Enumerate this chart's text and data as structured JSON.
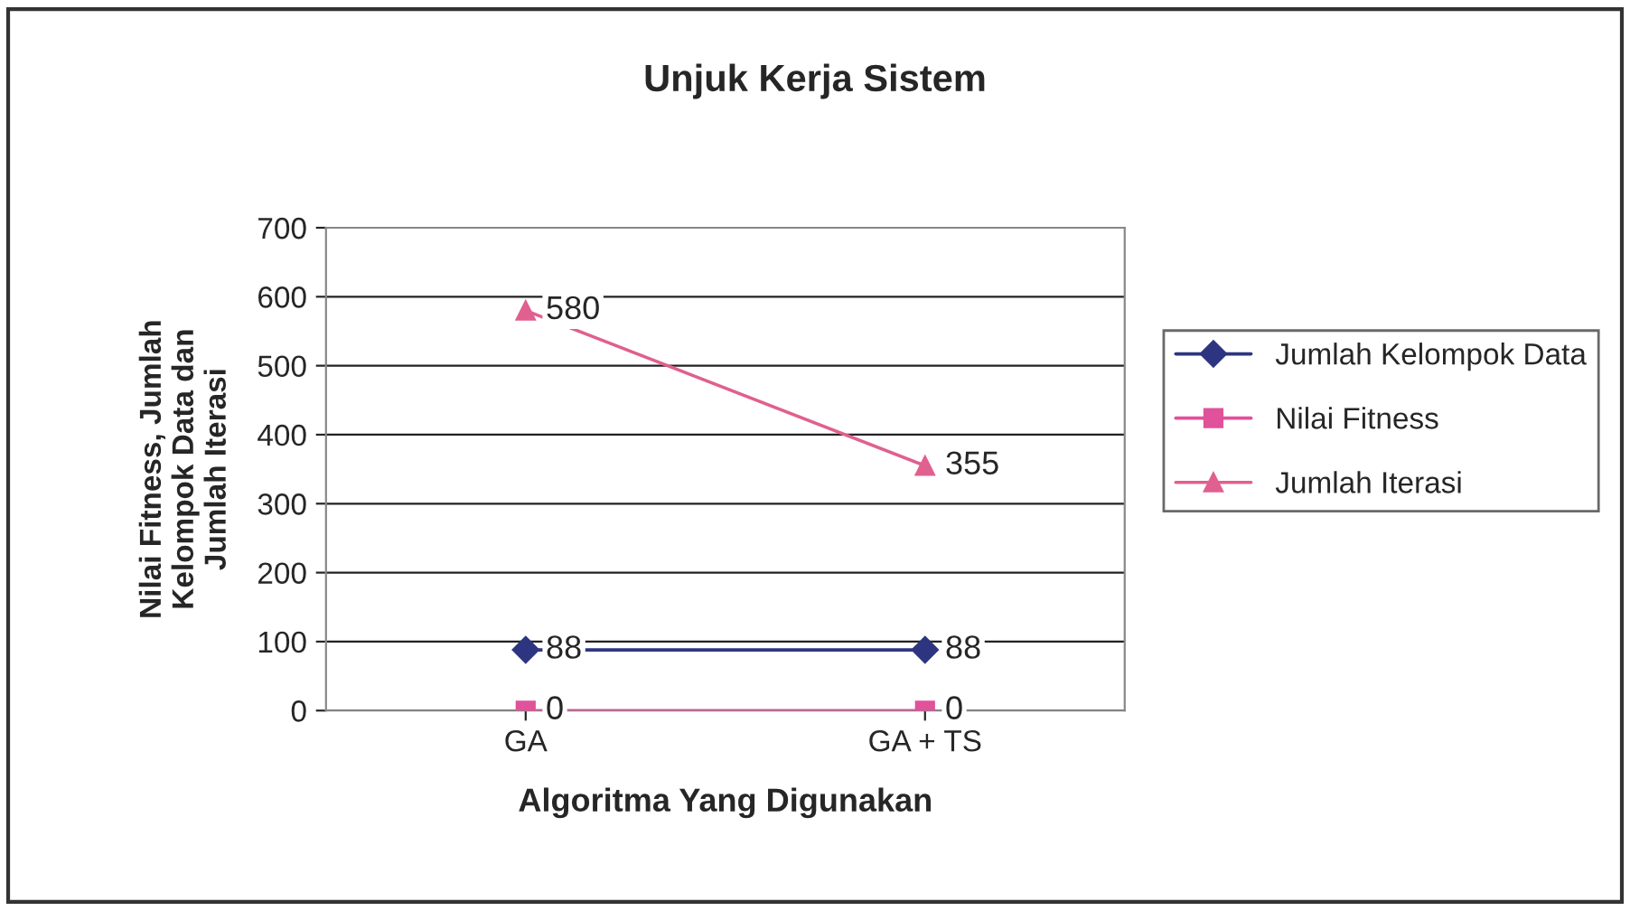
{
  "chart_data": {
    "type": "line",
    "title": "Unjuk Kerja Sistem",
    "xlabel": "Algoritma Yang Digunakan",
    "ylabel": "Nilai Fitness, Jumlah\nKelompok Data dan\nJumlah Iterasi",
    "categories": [
      "GA",
      "GA + TS"
    ],
    "series": [
      {
        "name": "Jumlah Kelompok Data",
        "color": "#2e3580",
        "marker": "diamond",
        "values": [
          88,
          88
        ]
      },
      {
        "name": "Nilai Fitness",
        "color": "#e0529a",
        "marker": "square",
        "values": [
          0,
          0
        ]
      },
      {
        "name": "Jumlah Iterasi",
        "color": "#e0608f",
        "marker": "triangle",
        "values": [
          580,
          355
        ]
      }
    ],
    "ylim": [
      0,
      700
    ],
    "yticks": [
      0,
      100,
      200,
      300,
      400,
      500,
      600,
      700
    ],
    "grid": "y",
    "legend": "right",
    "data_labels": true
  }
}
